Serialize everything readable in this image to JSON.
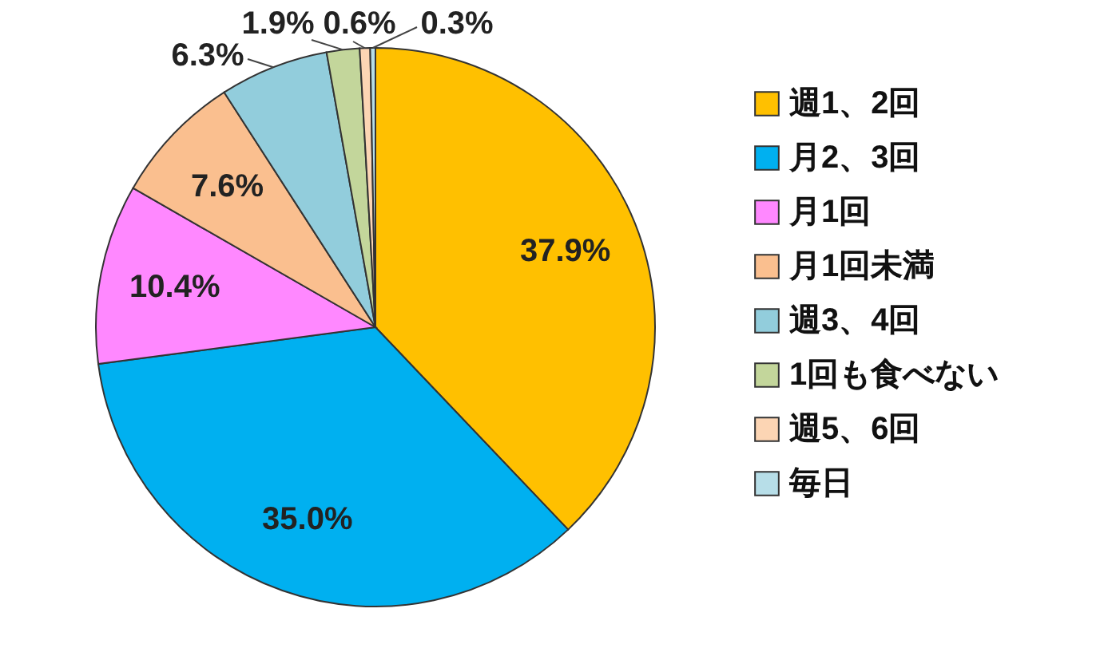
{
  "chart_data": {
    "type": "pie",
    "categories": [
      "週1、2回",
      "月2、3回",
      "月1回",
      "月1回未満",
      "週3、4回",
      "1回も食べない",
      "週5、6回",
      "毎日"
    ],
    "values": [
      37.9,
      35.0,
      10.4,
      7.6,
      6.3,
      1.9,
      0.6,
      0.3
    ],
    "colors": [
      "#ffc000",
      "#00b0f0",
      "#ff88ff",
      "#fabf8f",
      "#92cddc",
      "#c3d69b",
      "#fcd5b4",
      "#b7dee8"
    ],
    "value_labels": [
      "37.9%",
      "35.0%",
      "10.4%",
      "7.6%",
      "6.3%",
      "1.9%",
      "0.6%",
      "0.3%"
    ],
    "legend": "right"
  }
}
